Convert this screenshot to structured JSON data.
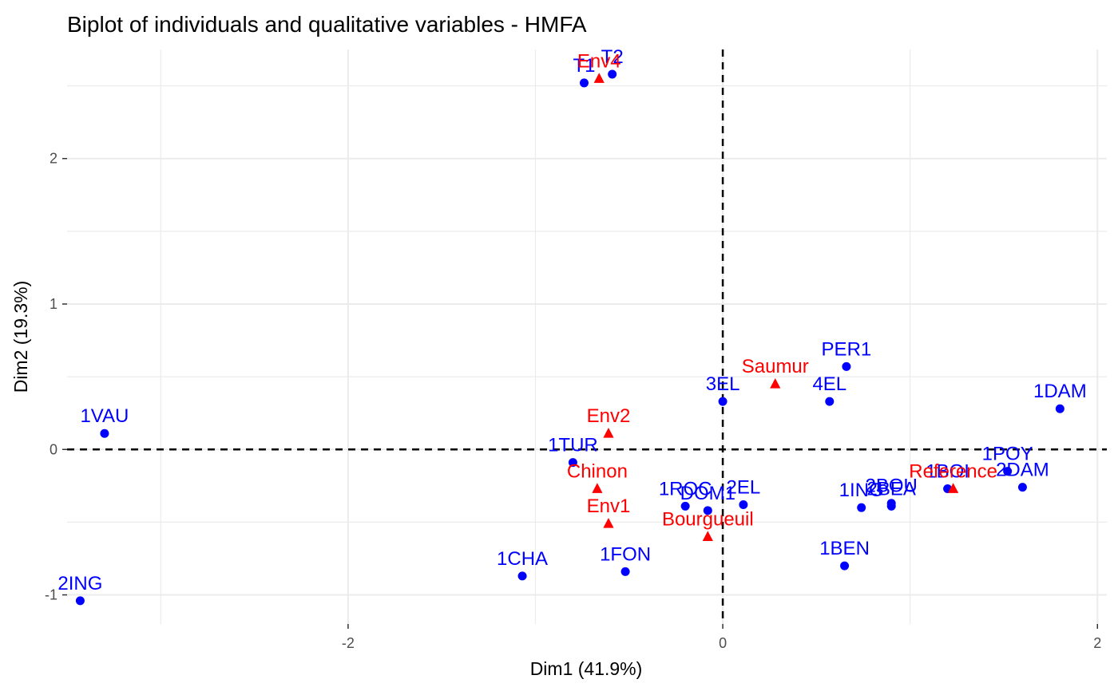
{
  "chart_data": {
    "type": "scatter",
    "title": "Biplot of individuals and qualitative variables - HMFA",
    "xlabel": "Dim1 (41.9%)",
    "ylabel": "Dim2 (19.3%)",
    "xlim": [
      -3.5,
      2.05
    ],
    "ylim": [
      -1.2,
      2.75
    ],
    "x_ticks": [
      -2,
      0,
      2
    ],
    "y_ticks": [
      -1,
      0,
      1,
      2
    ],
    "grid": true,
    "reference_lines": {
      "x": 0,
      "y": 0,
      "style": "dashed"
    },
    "colors": {
      "individuals": "#0000FF",
      "variables": "#FF0000"
    },
    "series": [
      {
        "marker": "circle",
        "color": "#0000FF",
        "points": [
          {
            "label": "T1",
            "x": -0.74,
            "y": 2.52
          },
          {
            "label": "T2",
            "x": -0.59,
            "y": 2.58
          },
          {
            "label": "1VAU",
            "x": -3.3,
            "y": 0.11
          },
          {
            "label": "2ING",
            "x": -3.43,
            "y": -1.04
          },
          {
            "label": "1CHA",
            "x": -1.07,
            "y": -0.87
          },
          {
            "label": "1FON",
            "x": -0.52,
            "y": -0.84
          },
          {
            "label": "1TUR",
            "x": -0.8,
            "y": -0.09
          },
          {
            "label": "1ROC",
            "x": -0.2,
            "y": -0.39
          },
          {
            "label": "DOM1",
            "x": -0.08,
            "y": -0.42
          },
          {
            "label": "2EL",
            "x": 0.11,
            "y": -0.38
          },
          {
            "label": "3EL",
            "x": 0.0,
            "y": 0.33
          },
          {
            "label": "PER1",
            "x": 0.66,
            "y": 0.57
          },
          {
            "label": "4EL",
            "x": 0.57,
            "y": 0.33
          },
          {
            "label": "1BEN",
            "x": 0.65,
            "y": -0.8
          },
          {
            "label": "1ING",
            "x": 0.74,
            "y": -0.4
          },
          {
            "label": "2BOU",
            "x": 0.9,
            "y": -0.37
          },
          {
            "label": "2BEA",
            "x": 0.9,
            "y": -0.39
          },
          {
            "label": "1BOI",
            "x": 1.2,
            "y": -0.27
          },
          {
            "label": "1POY",
            "x": 1.52,
            "y": -0.15
          },
          {
            "label": "2DAM",
            "x": 1.6,
            "y": -0.26
          },
          {
            "label": "1DAM",
            "x": 1.8,
            "y": 0.28
          }
        ]
      },
      {
        "marker": "triangle",
        "color": "#FF0000",
        "points": [
          {
            "label": "Env4",
            "x": -0.66,
            "y": 2.55
          },
          {
            "label": "Saumur",
            "x": 0.28,
            "y": 0.45
          },
          {
            "label": "Env2",
            "x": -0.61,
            "y": 0.11
          },
          {
            "label": "Chinon",
            "x": -0.67,
            "y": -0.27
          },
          {
            "label": "Env1",
            "x": -0.61,
            "y": -0.51
          },
          {
            "label": "Bourgueuil",
            "x": -0.08,
            "y": -0.6
          },
          {
            "label": "Reference",
            "x": 1.23,
            "y": -0.27
          }
        ]
      }
    ]
  }
}
